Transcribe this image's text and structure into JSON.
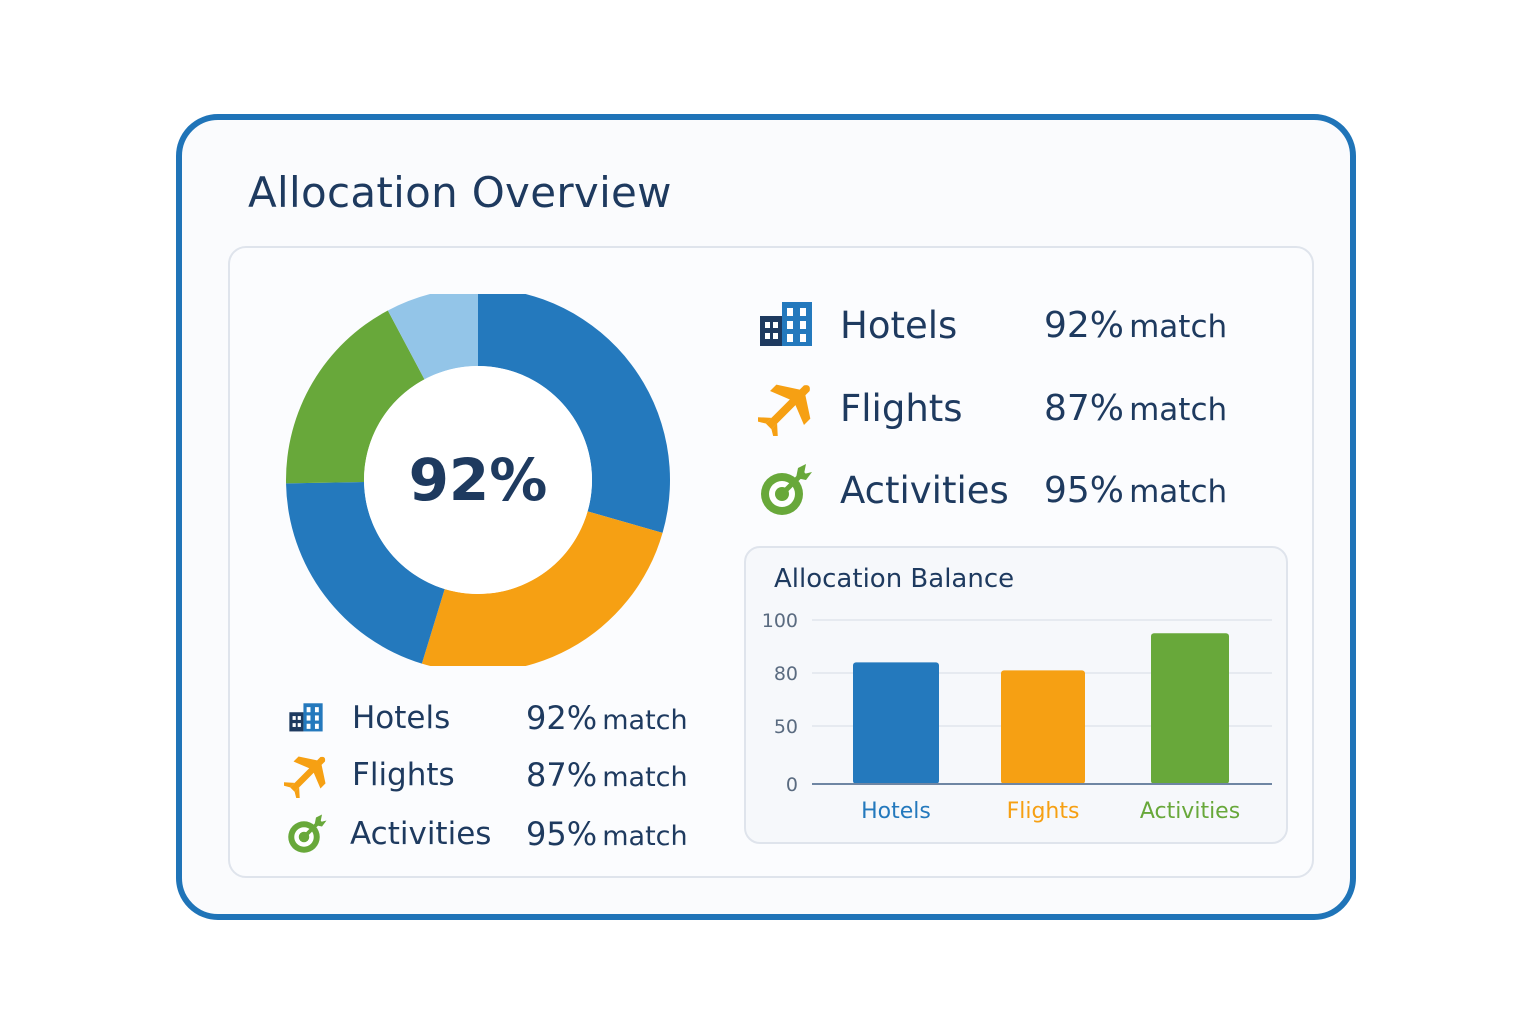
{
  "title": "Allocation Overview",
  "donut": {
    "center_label": "92%",
    "colors": [
      "#2479bd",
      "#f6a013",
      "#2479bd",
      "#68a83a",
      "#93c5e8"
    ]
  },
  "categories": [
    {
      "name": "Hotels",
      "pct": "92%",
      "suffix": "match",
      "color": "#2479bd",
      "icon": "building-icon"
    },
    {
      "name": "Flights",
      "pct": "87%",
      "suffix": "match",
      "color": "#f6a013",
      "icon": "airplane-icon"
    },
    {
      "name": "Activities",
      "pct": "95%",
      "suffix": "match",
      "color": "#68a83a",
      "icon": "target-icon"
    }
  ],
  "chart_data": {
    "type": "bar",
    "title": "Allocation Balance",
    "categories": [
      "Hotels",
      "Flights",
      "Activities"
    ],
    "values": [
      84,
      81,
      95
    ],
    "colors": [
      "#2479bd",
      "#f6a013",
      "#68a83a"
    ],
    "yticks": [
      "0",
      "50",
      "80",
      "100"
    ],
    "grid": true
  }
}
